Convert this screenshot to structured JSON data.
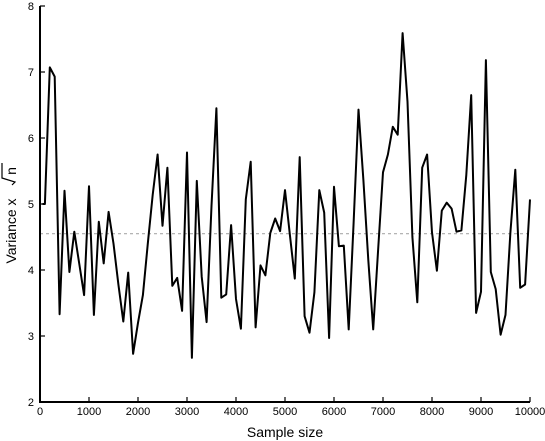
{
  "chart_data": {
    "type": "line",
    "xlabel": "Sample size",
    "ylabel": {
      "prefix": "Variance x",
      "radicand": "n"
    },
    "xlim": [
      0,
      10000
    ],
    "ylim": [
      2,
      8
    ],
    "xticks": [
      0,
      1000,
      2000,
      3000,
      4000,
      5000,
      6000,
      7000,
      8000,
      9000,
      10000
    ],
    "yticks": [
      2,
      3,
      4,
      5,
      6,
      7,
      8
    ],
    "grid": false,
    "legend": "none",
    "reference_line": {
      "y": 4.55,
      "style": "dotted",
      "color": "#aaaaaa"
    },
    "series": [
      {
        "color": "#000000",
        "x": [
          50,
          100,
          200,
          300,
          400,
          500,
          600,
          700,
          800,
          900,
          1000,
          1100,
          1200,
          1300,
          1400,
          1500,
          1600,
          1700,
          1800,
          1900,
          2000,
          2100,
          2200,
          2300,
          2400,
          2500,
          2600,
          2700,
          2800,
          2900,
          3000,
          3100,
          3200,
          3300,
          3400,
          3500,
          3600,
          3700,
          3800,
          3900,
          4000,
          4100,
          4200,
          4300,
          4400,
          4500,
          4600,
          4700,
          4800,
          4900,
          5000,
          5100,
          5200,
          5300,
          5400,
          5500,
          5600,
          5700,
          5800,
          5900,
          6000,
          6100,
          6200,
          6300,
          6400,
          6500,
          6600,
          6700,
          6800,
          6900,
          7000,
          7100,
          7200,
          7300,
          7400,
          7500,
          7600,
          7700,
          7800,
          7900,
          8000,
          8100,
          8200,
          8300,
          8400,
          8500,
          8600,
          8700,
          8800,
          8900,
          9000,
          9100,
          9200,
          9300,
          9400,
          9500,
          9600,
          9700,
          9800,
          9900,
          10000
        ],
        "y": [
          5.0,
          5.0,
          7.07,
          6.93,
          3.33,
          5.2,
          3.97,
          4.58,
          4.1,
          3.62,
          5.27,
          3.32,
          4.73,
          4.1,
          4.88,
          4.4,
          3.78,
          3.22,
          3.96,
          2.73,
          3.2,
          3.62,
          4.4,
          5.14,
          5.75,
          4.67,
          5.55,
          3.76,
          3.88,
          3.38,
          5.78,
          2.67,
          5.35,
          3.9,
          3.21,
          4.97,
          6.45,
          3.58,
          3.63,
          4.68,
          3.56,
          3.11,
          5.07,
          5.64,
          3.13,
          4.07,
          3.92,
          4.56,
          4.78,
          4.59,
          5.21,
          4.53,
          3.87,
          5.71,
          3.3,
          3.05,
          3.66,
          5.21,
          4.87,
          2.97,
          5.26,
          4.36,
          4.37,
          3.1,
          4.71,
          6.43,
          5.36,
          4.15,
          3.1,
          4.3,
          5.48,
          5.75,
          6.17,
          6.05,
          7.59,
          6.55,
          4.5,
          3.51,
          5.55,
          5.75,
          4.57,
          3.99,
          4.9,
          5.02,
          4.93,
          4.58,
          4.6,
          5.44,
          6.65,
          3.35,
          3.67,
          7.18,
          3.97,
          3.71,
          3.02,
          3.32,
          4.57,
          5.52,
          3.73,
          3.78,
          5.07
        ]
      }
    ]
  }
}
